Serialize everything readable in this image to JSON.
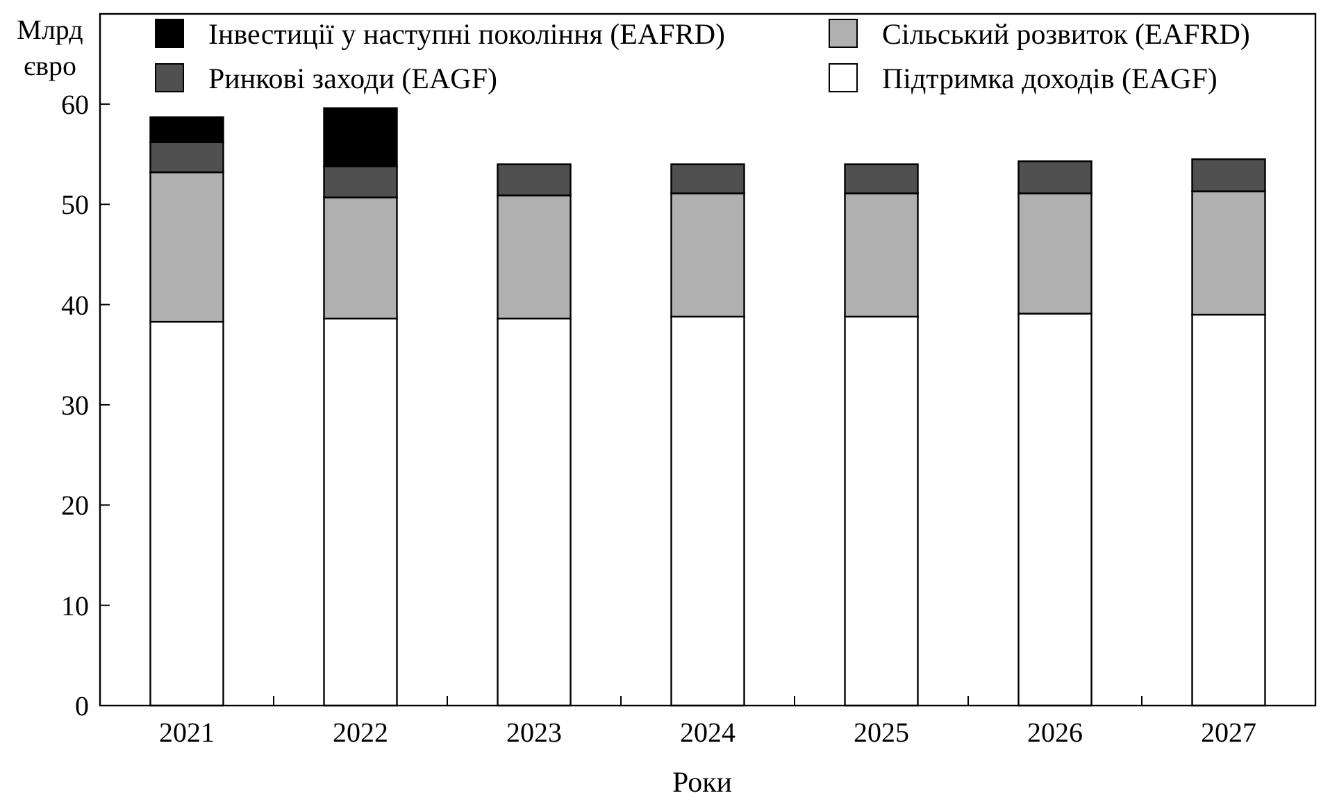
{
  "chart_data": {
    "type": "bar",
    "stacked": true,
    "ylabel": "Млрд євро",
    "xlabel": "Роки",
    "categories": [
      "2021",
      "2022",
      "2023",
      "2024",
      "2025",
      "2026",
      "2027"
    ],
    "series": [
      {
        "name": "Підтримка доходів (EAGF)",
        "color": "#ffffff",
        "values": [
          38.3,
          38.6,
          38.6,
          38.8,
          38.8,
          39.1,
          39.0
        ]
      },
      {
        "name": "Сільський розвиток (EAFRD)",
        "color": "#b0b0b0",
        "values": [
          14.9,
          12.1,
          12.3,
          12.3,
          12.3,
          12.0,
          12.3
        ]
      },
      {
        "name": "Ринкові заходи (EAGF)",
        "color": "#505050",
        "values": [
          3.0,
          3.1,
          3.1,
          2.9,
          2.9,
          3.2,
          3.2
        ]
      },
      {
        "name": "Інвестиції у наступні покоління (EAFRD)",
        "color": "#000000",
        "values": [
          2.5,
          5.8,
          0,
          0,
          0,
          0,
          0
        ]
      }
    ],
    "ylim": [
      0,
      69
    ],
    "yticks": [
      0,
      10,
      20,
      30,
      40,
      50,
      60
    ],
    "legend": "top",
    "grid": false
  }
}
